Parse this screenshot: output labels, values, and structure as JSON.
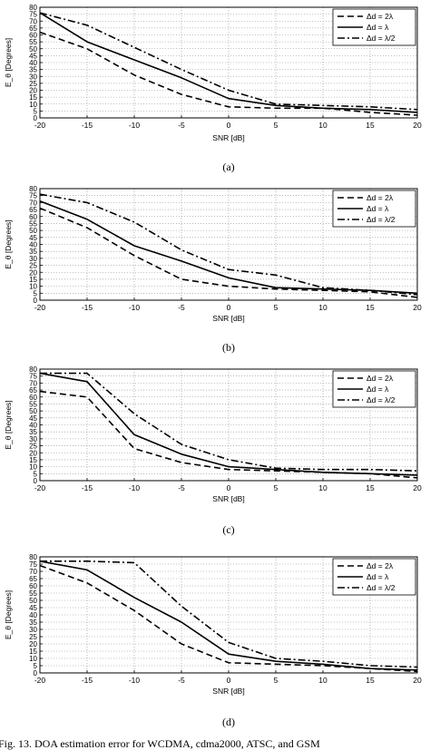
{
  "figure_caption": "Fig. 13.  DOA estimation error for WCDMA, cdma2000, ATSC, and GSM",
  "chart_data": [
    {
      "panel_label": "(a)",
      "type": "line",
      "xlabel": "SNR [dB]",
      "ylabel": "E_θ [Degrees]",
      "xlim": [
        -20,
        20
      ],
      "ylim": [
        0,
        80
      ],
      "xticks": [
        -20,
        -15,
        -10,
        -5,
        0,
        5,
        10,
        15,
        20
      ],
      "yticks": [
        0,
        5,
        10,
        15,
        20,
        25,
        30,
        35,
        40,
        45,
        50,
        55,
        60,
        65,
        70,
        75,
        80
      ],
      "grid": true,
      "legend_position": "top-right",
      "x": [
        -20,
        -15,
        -10,
        -5,
        0,
        5,
        10,
        15,
        20
      ],
      "series": [
        {
          "name": "Δd = 2λ",
          "style": "dashed",
          "values": [
            62,
            50,
            31,
            17,
            8,
            7,
            7,
            4,
            2
          ]
        },
        {
          "name": "Δd = λ",
          "style": "solid",
          "values": [
            76,
            55,
            42,
            29,
            14,
            9,
            7,
            6,
            4
          ]
        },
        {
          "name": "Δd = λ/2",
          "style": "dashdot",
          "values": [
            76,
            67,
            51,
            35,
            20,
            10,
            9,
            8,
            6
          ]
        }
      ]
    },
    {
      "panel_label": "(b)",
      "type": "line",
      "xlabel": "SNR [dB]",
      "ylabel": "E_θ [Degrees]",
      "xlim": [
        -20,
        20
      ],
      "ylim": [
        0,
        80
      ],
      "xticks": [
        -20,
        -15,
        -10,
        -5,
        0,
        5,
        10,
        15,
        20
      ],
      "yticks": [
        0,
        5,
        10,
        15,
        20,
        25,
        30,
        35,
        40,
        45,
        50,
        55,
        60,
        65,
        70,
        75,
        80
      ],
      "grid": true,
      "legend_position": "top-right",
      "x": [
        -20,
        -15,
        -10,
        -5,
        0,
        5,
        10,
        15,
        20
      ],
      "series": [
        {
          "name": "Δd = 2λ",
          "style": "dashed",
          "values": [
            66,
            52,
            32,
            15,
            10,
            8,
            7,
            6,
            2
          ]
        },
        {
          "name": "Δd = λ",
          "style": "solid",
          "values": [
            71,
            58,
            39,
            28,
            16,
            9,
            8,
            7,
            5
          ]
        },
        {
          "name": "Δd = λ/2",
          "style": "dashdot",
          "values": [
            76,
            70,
            56,
            36,
            22,
            18,
            9,
            7,
            4
          ]
        }
      ]
    },
    {
      "panel_label": "(c)",
      "type": "line",
      "xlabel": "SNR [dB]",
      "ylabel": "E_θ [Degrees]",
      "xlim": [
        -20,
        20
      ],
      "ylim": [
        0,
        80
      ],
      "xticks": [
        -20,
        -15,
        -10,
        -5,
        0,
        5,
        10,
        15,
        20
      ],
      "yticks": [
        0,
        5,
        10,
        15,
        20,
        25,
        30,
        35,
        40,
        45,
        50,
        55,
        60,
        65,
        70,
        75,
        80
      ],
      "grid": true,
      "legend_position": "top-right",
      "x": [
        -20,
        -15,
        -10,
        -5,
        0,
        5,
        10,
        15,
        20
      ],
      "series": [
        {
          "name": "Δd = 2λ",
          "style": "dashed",
          "values": [
            64,
            60,
            23,
            13,
            8,
            7,
            6,
            5,
            2
          ]
        },
        {
          "name": "Δd = λ",
          "style": "solid",
          "values": [
            77,
            71,
            33,
            19,
            10,
            8,
            6,
            5,
            4
          ]
        },
        {
          "name": "Δd = λ/2",
          "style": "dashdot",
          "values": [
            77,
            77,
            48,
            26,
            15,
            9,
            8,
            8,
            7
          ]
        }
      ]
    },
    {
      "panel_label": "(d)",
      "type": "line",
      "xlabel": "SNR [dB]",
      "ylabel": "E_θ [Degrees]",
      "xlim": [
        -20,
        20
      ],
      "ylim": [
        0,
        80
      ],
      "xticks": [
        -20,
        -15,
        -10,
        -5,
        0,
        5,
        10,
        15,
        20
      ],
      "yticks": [
        0,
        5,
        10,
        15,
        20,
        25,
        30,
        35,
        40,
        45,
        50,
        55,
        60,
        65,
        70,
        75,
        80
      ],
      "grid": true,
      "legend_position": "top-right",
      "x": [
        -20,
        -15,
        -10,
        -5,
        0,
        5,
        10,
        15,
        20
      ],
      "series": [
        {
          "name": "Δd = 2λ",
          "style": "dashed",
          "values": [
            74,
            62,
            43,
            20,
            7,
            6,
            5,
            3,
            1
          ]
        },
        {
          "name": "Δd = λ",
          "style": "solid",
          "values": [
            77,
            71,
            52,
            35,
            13,
            8,
            6,
            3,
            2
          ]
        },
        {
          "name": "Δd = λ/2",
          "style": "dashdot",
          "values": [
            77,
            77,
            76,
            46,
            21,
            10,
            8,
            5,
            4
          ]
        }
      ]
    }
  ]
}
